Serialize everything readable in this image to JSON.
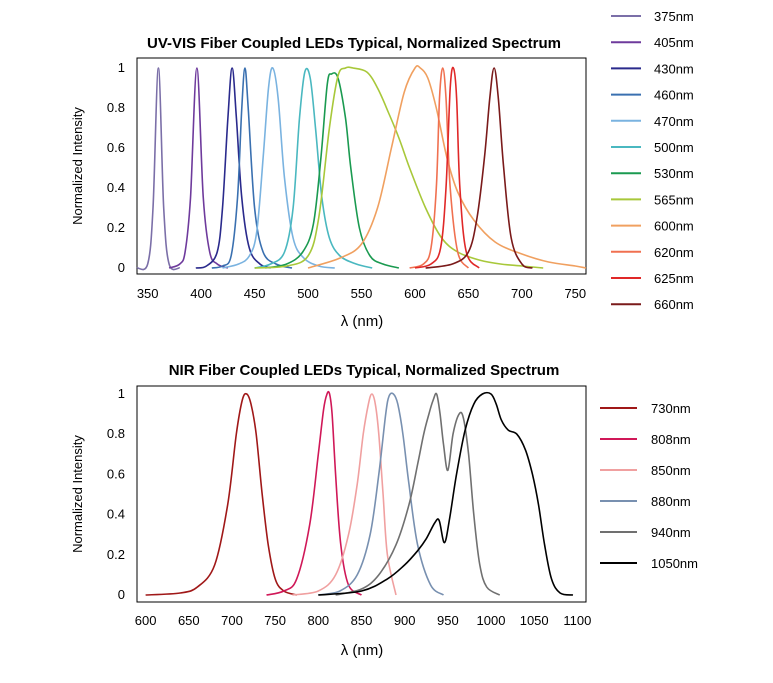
{
  "chart_data": [
    {
      "type": "line",
      "title": "UV-VIS Fiber Coupled LEDs Typical, Normalized Spectrum",
      "xlabel": "λ (nm)",
      "ylabel": "Normalized Intensity",
      "xlim": [
        340,
        760
      ],
      "ylim": [
        0,
        1
      ],
      "xticks": [
        350,
        400,
        450,
        500,
        550,
        600,
        650,
        700,
        750
      ],
      "yticks": [
        0,
        0.2,
        0.4,
        0.6,
        0.8,
        1
      ],
      "grid": false,
      "legend": "right",
      "series": [
        {
          "name": "375nm",
          "color": "#7b6fa8",
          "x": [
            340,
            350,
            355,
            360,
            365,
            370,
            380
          ],
          "y": [
            0,
            0.02,
            0.3,
            1,
            0.3,
            0.02,
            0
          ]
        },
        {
          "name": "405nm",
          "color": "#6e3a9c",
          "x": [
            370,
            380,
            385,
            390,
            396,
            402,
            408,
            415,
            425
          ],
          "y": [
            0,
            0.02,
            0.08,
            0.35,
            1,
            0.35,
            0.08,
            0.02,
            0
          ]
        },
        {
          "name": "430nm",
          "color": "#2a2a8c",
          "x": [
            395,
            405,
            415,
            420,
            425,
            429,
            433,
            438,
            445,
            455,
            465
          ],
          "y": [
            0,
            0.01,
            0.08,
            0.3,
            0.75,
            1,
            0.75,
            0.35,
            0.1,
            0.02,
            0
          ]
        },
        {
          "name": "460nm",
          "color": "#3a70b0",
          "x": [
            410,
            420,
            428,
            434,
            438,
            441,
            444,
            450,
            458,
            470,
            485
          ],
          "y": [
            0,
            0.01,
            0.06,
            0.35,
            0.8,
            1,
            0.8,
            0.3,
            0.08,
            0.02,
            0
          ]
        },
        {
          "name": "470nm",
          "color": "#7ab3e0",
          "x": [
            420,
            435,
            445,
            452,
            458,
            463,
            467,
            472,
            478,
            486,
            496,
            510,
            525
          ],
          "y": [
            0,
            0.02,
            0.06,
            0.18,
            0.55,
            0.9,
            1,
            0.85,
            0.45,
            0.15,
            0.05,
            0.01,
            0
          ]
        },
        {
          "name": "500nm",
          "color": "#4ab8c0",
          "x": [
            450,
            465,
            478,
            486,
            492,
            497,
            502,
            507,
            513,
            520,
            530,
            545,
            560
          ],
          "y": [
            0,
            0.02,
            0.08,
            0.3,
            0.75,
            0.98,
            0.95,
            0.7,
            0.35,
            0.15,
            0.06,
            0.02,
            0
          ]
        },
        {
          "name": "530nm",
          "color": "#1a9a50",
          "x": [
            460,
            480,
            495,
            505,
            512,
            518,
            522,
            528,
            535,
            540,
            548,
            558,
            570,
            585
          ],
          "y": [
            0,
            0.02,
            0.08,
            0.22,
            0.55,
            0.92,
            0.97,
            0.95,
            0.75,
            0.5,
            0.2,
            0.06,
            0.02,
            0
          ]
        },
        {
          "name": "565nm",
          "color": "#a8c83a",
          "x": [
            450,
            480,
            500,
            510,
            520,
            528,
            535,
            542,
            555,
            565,
            575,
            585,
            595,
            610,
            625,
            640,
            660,
            680,
            700,
            720
          ],
          "y": [
            0,
            0.01,
            0.06,
            0.25,
            0.7,
            0.96,
            1,
            1,
            0.98,
            0.9,
            0.78,
            0.65,
            0.5,
            0.3,
            0.15,
            0.08,
            0.04,
            0.02,
            0.01,
            0
          ]
        },
        {
          "name": "600nm",
          "color": "#f0a060",
          "x": [
            500,
            530,
            550,
            565,
            578,
            590,
            600,
            605,
            612,
            620,
            630,
            640,
            655,
            675,
            700,
            725,
            750,
            760
          ],
          "y": [
            0,
            0.05,
            0.12,
            0.3,
            0.6,
            0.88,
            1,
            1,
            0.95,
            0.8,
            0.55,
            0.38,
            0.24,
            0.13,
            0.07,
            0.03,
            0.01,
            0
          ]
        },
        {
          "name": "620nm",
          "color": "#f07050",
          "x": [
            595,
            608,
            615,
            620,
            623,
            626,
            629,
            633,
            640,
            650
          ],
          "y": [
            0,
            0.02,
            0.1,
            0.4,
            0.85,
            1,
            0.85,
            0.4,
            0.08,
            0
          ]
        },
        {
          "name": "625nm",
          "color": "#e02828",
          "x": [
            600,
            615,
            624,
            629,
            633,
            636,
            639,
            642,
            648,
            660
          ],
          "y": [
            0,
            0.02,
            0.1,
            0.4,
            0.9,
            1,
            0.85,
            0.4,
            0.08,
            0
          ]
        },
        {
          "name": "660nm",
          "color": "#7a1a1a",
          "x": [
            610,
            635,
            650,
            658,
            665,
            670,
            674,
            678,
            683,
            690,
            700,
            710
          ],
          "y": [
            0,
            0.02,
            0.08,
            0.25,
            0.55,
            0.85,
            1,
            0.85,
            0.5,
            0.15,
            0.02,
            0
          ]
        }
      ]
    },
    {
      "type": "line",
      "title": "NIR Fiber Coupled LEDs Typical, Normalized Spectrum",
      "xlabel": "λ (nm)",
      "ylabel": "Normalized Intensity",
      "xlim": [
        590,
        1110
      ],
      "ylim": [
        0,
        1
      ],
      "xticks": [
        600,
        650,
        700,
        750,
        800,
        850,
        900,
        950,
        1000,
        1050,
        1100
      ],
      "yticks": [
        0,
        0.2,
        0.4,
        0.6,
        0.8,
        1
      ],
      "grid": false,
      "legend": "right",
      "series": [
        {
          "name": "730nm",
          "color": "#a01818",
          "x": [
            600,
            640,
            660,
            680,
            695,
            705,
            712,
            717,
            722,
            728,
            735,
            742,
            750,
            760,
            775
          ],
          "y": [
            0,
            0.01,
            0.04,
            0.15,
            0.45,
            0.8,
            0.97,
            1,
            0.95,
            0.8,
            0.5,
            0.25,
            0.08,
            0.02,
            0
          ]
        },
        {
          "name": "808nm",
          "color": "#d01858",
          "x": [
            740,
            760,
            775,
            790,
            800,
            806,
            810,
            813,
            816,
            820,
            826,
            835,
            850
          ],
          "y": [
            0,
            0.02,
            0.08,
            0.35,
            0.7,
            0.92,
            1,
            1,
            0.9,
            0.6,
            0.25,
            0.05,
            0
          ]
        },
        {
          "name": "850nm",
          "color": "#f0a0a0",
          "x": [
            770,
            800,
            820,
            835,
            845,
            852,
            858,
            862,
            866,
            870,
            875,
            880,
            890
          ],
          "y": [
            0,
            0.02,
            0.1,
            0.3,
            0.55,
            0.8,
            0.95,
            1,
            0.95,
            0.8,
            0.5,
            0.2,
            0
          ]
        },
        {
          "name": "880nm",
          "color": "#7890b0",
          "x": [
            800,
            825,
            845,
            860,
            870,
            878,
            882,
            887,
            892,
            898,
            905,
            915,
            930,
            945
          ],
          "y": [
            0,
            0.02,
            0.1,
            0.3,
            0.6,
            0.9,
            0.99,
            1,
            0.95,
            0.8,
            0.55,
            0.25,
            0.05,
            0
          ]
        },
        {
          "name": "940nm",
          "color": "#707070",
          "x": [
            820,
            850,
            870,
            890,
            905,
            915,
            922,
            928,
            933,
            937,
            941,
            945,
            950,
            956,
            963,
            968,
            974,
            980,
            987,
            995,
            1010
          ],
          "y": [
            0,
            0.03,
            0.1,
            0.25,
            0.45,
            0.65,
            0.8,
            0.9,
            0.97,
            1,
            0.9,
            0.75,
            0.62,
            0.8,
            0.9,
            0.88,
            0.7,
            0.4,
            0.15,
            0.04,
            0
          ]
        },
        {
          "name": "1050nm",
          "color": "#000000",
          "x": [
            800,
            850,
            880,
            900,
            915,
            925,
            935,
            940,
            946,
            952,
            960,
            970,
            980,
            990,
            1000,
            1006,
            1012,
            1020,
            1030,
            1040,
            1048,
            1055,
            1062,
            1070,
            1080,
            1095
          ],
          "y": [
            0,
            0.02,
            0.08,
            0.15,
            0.22,
            0.28,
            0.36,
            0.37,
            0.26,
            0.38,
            0.6,
            0.82,
            0.95,
            1,
            1,
            0.95,
            0.87,
            0.82,
            0.8,
            0.72,
            0.6,
            0.45,
            0.25,
            0.08,
            0.01,
            0
          ]
        }
      ]
    }
  ]
}
